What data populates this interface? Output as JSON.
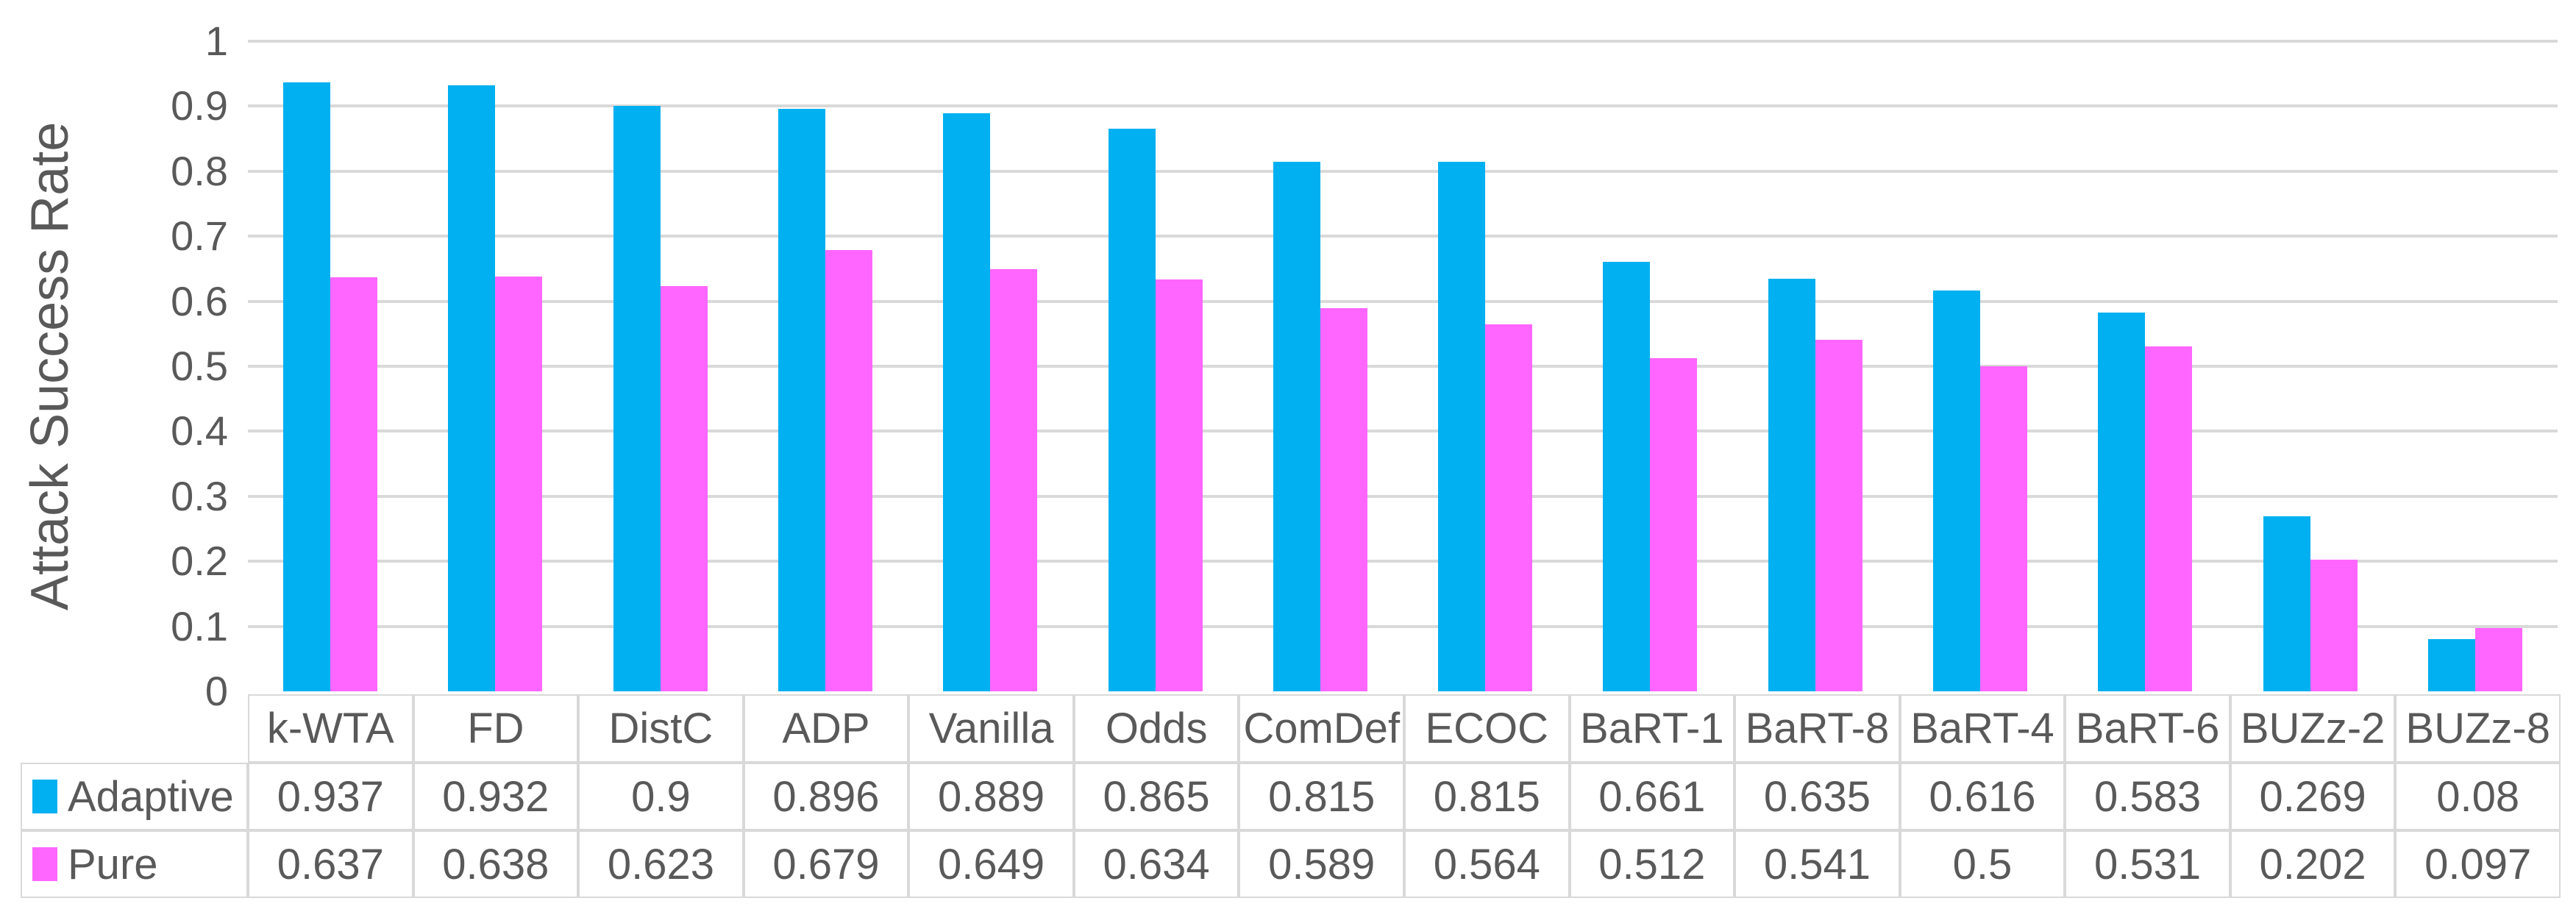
{
  "chart_data": {
    "type": "bar",
    "title": "",
    "xlabel": "",
    "ylabel": "Attack Success Rate",
    "ylim": [
      0,
      1
    ],
    "ytick_labels": [
      "1",
      "0.9",
      "0.8",
      "0.7",
      "0.6",
      "0.5",
      "0.4",
      "0.3",
      "0.2",
      "0.1",
      "0"
    ],
    "grid": true,
    "legend_position": "left-of-data-table",
    "categories": [
      "k-WTA",
      "FD",
      "DistC",
      "ADP",
      "Vanilla",
      "Odds",
      "ComDef",
      "ECOC",
      "BaRT-1",
      "BaRT-8",
      "BaRT-4",
      "BaRT-6",
      "BUZz-2",
      "BUZz-8"
    ],
    "series": [
      {
        "name": "Adaptive",
        "color": "#00B0F0",
        "values": [
          0.937,
          0.932,
          0.9,
          0.896,
          0.889,
          0.865,
          0.815,
          0.815,
          0.661,
          0.635,
          0.616,
          0.583,
          0.269,
          0.08
        ]
      },
      {
        "name": "Pure",
        "color": "#FF66FF",
        "values": [
          0.637,
          0.638,
          0.623,
          0.679,
          0.649,
          0.634,
          0.589,
          0.564,
          0.512,
          0.541,
          0.5,
          0.531,
          0.202,
          0.097
        ]
      }
    ]
  },
  "data_table": {
    "header": [
      "k-WTA",
      "FD",
      "DistC",
      "ADP",
      "Vanilla",
      "Odds",
      "ComDef",
      "ECOC",
      "BaRT-1",
      "BaRT-8",
      "BaRT-4",
      "BaRT-6",
      "BUZz-2",
      "BUZz-8"
    ],
    "rows": [
      {
        "label": "Adaptive",
        "swatch_color": "#00B0F0",
        "values": [
          "0.937",
          "0.932",
          "0.9",
          "0.896",
          "0.889",
          "0.865",
          "0.815",
          "0.815",
          "0.661",
          "0.635",
          "0.616",
          "0.583",
          "0.269",
          "0.08"
        ]
      },
      {
        "label": "Pure",
        "swatch_color": "#FF66FF",
        "values": [
          "0.637",
          "0.638",
          "0.623",
          "0.679",
          "0.649",
          "0.634",
          "0.589",
          "0.564",
          "0.512",
          "0.541",
          "0.5",
          "0.531",
          "0.202",
          "0.097"
        ]
      }
    ]
  },
  "colors": {
    "text": "#595959",
    "gridline": "#D9D9D9",
    "table_border": "#D9D9D9",
    "background": "#FFFFFF"
  }
}
